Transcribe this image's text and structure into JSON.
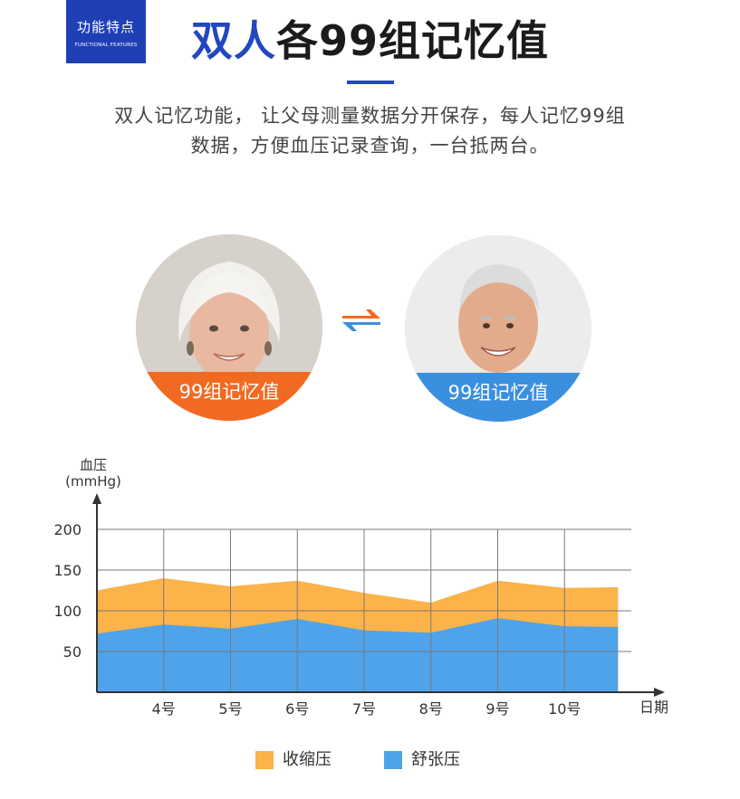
{
  "badge": {
    "cn": "功能特点",
    "en": "FUNCTIONAL FEATURES"
  },
  "header": {
    "title_highlight": "双人",
    "title_rest": "各99组记忆值",
    "desc_line1": "双人记忆功能， 让父母测量数据分开保存，每人记忆99组",
    "desc_line2": "数据，方便血压记录查询，一台抵两台。"
  },
  "users": [
    {
      "label": "99组记忆值",
      "color": "#f26a22",
      "icon": "elderly-woman-photo"
    },
    {
      "label": "99组记忆值",
      "color": "#3b8fdf",
      "icon": "elderly-man-photo"
    }
  ],
  "swap_icon": {
    "icon": "swap-arrows-icon",
    "colors": [
      "#f26a22",
      "#3b8fdf"
    ]
  },
  "chart_data": {
    "type": "area",
    "ylabel_line1": "血压",
    "ylabel_line2": "(mmHg)",
    "xlabel": "日期",
    "ylim": [
      0,
      200
    ],
    "yticks": [
      50,
      100,
      150,
      200
    ],
    "categories": [
      "4号",
      "5号",
      "6号",
      "7号",
      "8号",
      "9号",
      "10号"
    ],
    "x_range": [
      3,
      11
    ],
    "grid": true,
    "legend_position": "bottom-center",
    "series": [
      {
        "name": "收缩压",
        "color": "#fbb34a",
        "x": [
          3,
          4,
          5,
          6,
          7,
          8,
          9,
          10,
          10.8
        ],
        "values": [
          125,
          140,
          130,
          137,
          122,
          110,
          137,
          128,
          129
        ]
      },
      {
        "name": "舒张压",
        "color": "#4fa3ea",
        "x": [
          3,
          4,
          5,
          6,
          7,
          8,
          9,
          10,
          10.8
        ],
        "values": [
          72,
          83,
          78,
          90,
          76,
          73,
          91,
          81,
          80
        ]
      }
    ]
  }
}
